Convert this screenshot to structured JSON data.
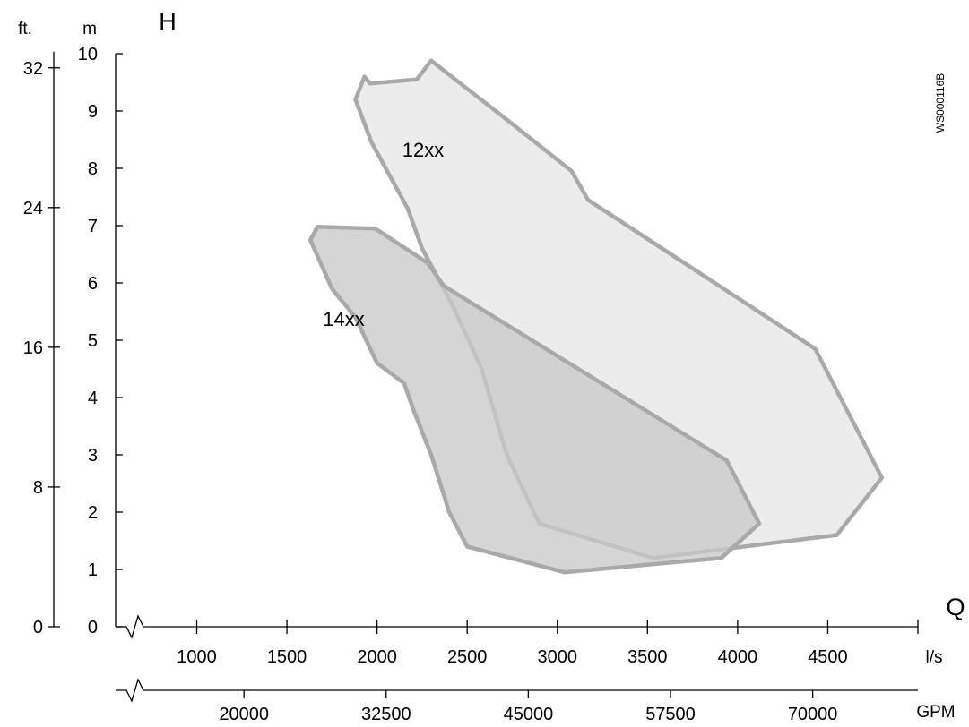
{
  "chart_data": {
    "type": "area",
    "title": "",
    "x_label": "Q",
    "y_label": "H",
    "x_unit": "l/s",
    "x2_unit": "GPM",
    "y_unit": "m",
    "y2_unit": "ft.",
    "image_code": "WS000116B",
    "x_ticks": [
      1000,
      1500,
      2000,
      2500,
      3000,
      3500,
      4000,
      4500
    ],
    "x2_ticks": [
      20000,
      32500,
      45000,
      57500,
      70000
    ],
    "y_ticks": [
      0,
      1,
      2,
      3,
      4,
      5,
      6,
      7,
      8,
      9,
      10
    ],
    "y2_ticks": [
      0,
      8,
      16,
      24,
      32
    ],
    "xlim": [
      550,
      5000
    ],
    "ylim": [
      0,
      10
    ],
    "grid": false,
    "series": [
      {
        "name": "12xx",
        "color": "#e7e7e7",
        "points": [
          [
            1880,
            9.2
          ],
          [
            1930,
            9.6
          ],
          [
            1960,
            9.48
          ],
          [
            2220,
            9.55
          ],
          [
            2300,
            9.88
          ],
          [
            2760,
            8.75
          ],
          [
            3080,
            7.95
          ],
          [
            3170,
            7.45
          ],
          [
            4430,
            4.85
          ],
          [
            4800,
            2.6
          ],
          [
            4550,
            1.6
          ],
          [
            3530,
            1.2
          ],
          [
            2900,
            1.8
          ],
          [
            2720,
            3.0
          ],
          [
            2580,
            4.5
          ],
          [
            2420,
            5.6
          ],
          [
            2250,
            6.6
          ],
          [
            2170,
            7.3
          ],
          [
            1970,
            8.45
          ]
        ],
        "label_at": [
          2140,
          8.2
        ]
      },
      {
        "name": "14xx",
        "color": "#c9c9c9",
        "points": [
          [
            1630,
            6.75
          ],
          [
            1670,
            6.98
          ],
          [
            1990,
            6.95
          ],
          [
            2280,
            6.35
          ],
          [
            2370,
            5.95
          ],
          [
            3940,
            2.9
          ],
          [
            4120,
            1.8
          ],
          [
            3910,
            1.2
          ],
          [
            3040,
            0.95
          ],
          [
            2500,
            1.4
          ],
          [
            2400,
            2.0
          ],
          [
            2300,
            3.0
          ],
          [
            2200,
            3.8
          ],
          [
            2150,
            4.25
          ],
          [
            2000,
            4.6
          ],
          [
            1880,
            5.4
          ],
          [
            1750,
            5.9
          ]
        ],
        "label_at": [
          1700,
          5.25
        ]
      }
    ]
  }
}
